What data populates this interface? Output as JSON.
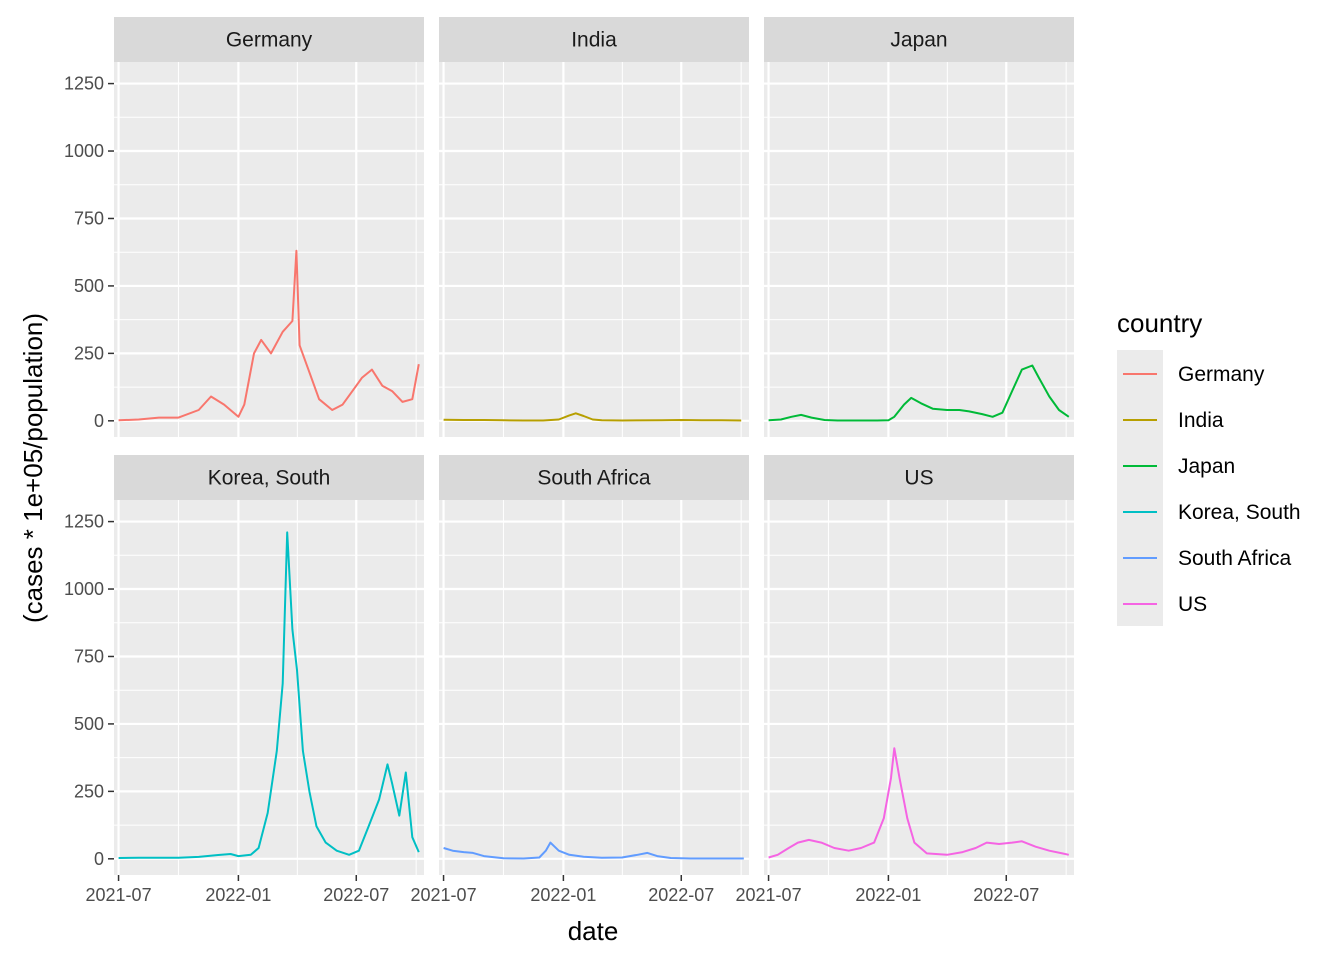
{
  "chart_data": {
    "type": "line",
    "facet": "country",
    "xlabel": "date",
    "ylabel": "(cases * 1e+05/population)",
    "x_ticks": [
      "2021-07",
      "2022-01",
      "2022-07"
    ],
    "y_ticks": [
      0,
      250,
      500,
      750,
      1000,
      1250
    ],
    "xlim": [
      "2021-06-24",
      "2022-10-13"
    ],
    "ylim": [
      -60,
      1330
    ],
    "legend": {
      "title": "country",
      "position": "right"
    },
    "grid": true,
    "series": [
      {
        "name": "Germany",
        "color": "#F8766D",
        "points": [
          [
            "2021-07-01",
            2
          ],
          [
            "2021-08-01",
            5
          ],
          [
            "2021-09-01",
            12
          ],
          [
            "2021-10-01",
            12
          ],
          [
            "2021-11-01",
            40
          ],
          [
            "2021-11-20",
            90
          ],
          [
            "2021-12-10",
            60
          ],
          [
            "2022-01-01",
            15
          ],
          [
            "2022-01-10",
            60
          ],
          [
            "2022-01-25",
            250
          ],
          [
            "2022-02-05",
            300
          ],
          [
            "2022-02-20",
            250
          ],
          [
            "2022-03-10",
            330
          ],
          [
            "2022-03-25",
            370
          ],
          [
            "2022-03-31",
            630
          ],
          [
            "2022-04-05",
            280
          ],
          [
            "2022-04-20",
            180
          ],
          [
            "2022-05-05",
            80
          ],
          [
            "2022-05-25",
            40
          ],
          [
            "2022-06-10",
            60
          ],
          [
            "2022-06-25",
            110
          ],
          [
            "2022-07-10",
            160
          ],
          [
            "2022-07-25",
            190
          ],
          [
            "2022-08-10",
            130
          ],
          [
            "2022-08-25",
            110
          ],
          [
            "2022-09-10",
            70
          ],
          [
            "2022-09-25",
            80
          ],
          [
            "2022-10-05",
            210
          ]
        ]
      },
      {
        "name": "India",
        "color": "#B79F00",
        "points": [
          [
            "2021-07-01",
            4
          ],
          [
            "2021-08-01",
            3
          ],
          [
            "2021-09-01",
            3
          ],
          [
            "2021-10-01",
            2
          ],
          [
            "2021-11-01",
            1
          ],
          [
            "2021-12-01",
            1
          ],
          [
            "2021-12-25",
            5
          ],
          [
            "2022-01-10",
            20
          ],
          [
            "2022-01-20",
            28
          ],
          [
            "2022-02-01",
            18
          ],
          [
            "2022-02-15",
            5
          ],
          [
            "2022-03-01",
            2
          ],
          [
            "2022-04-01",
            1
          ],
          [
            "2022-06-01",
            2
          ],
          [
            "2022-07-01",
            3
          ],
          [
            "2022-08-01",
            2
          ],
          [
            "2022-09-01",
            2
          ],
          [
            "2022-10-01",
            1
          ]
        ]
      },
      {
        "name": "Japan",
        "color": "#00BA38",
        "points": [
          [
            "2021-07-01",
            2
          ],
          [
            "2021-07-20",
            5
          ],
          [
            "2021-08-05",
            15
          ],
          [
            "2021-08-20",
            22
          ],
          [
            "2021-09-05",
            12
          ],
          [
            "2021-09-25",
            3
          ],
          [
            "2021-10-15",
            1
          ],
          [
            "2021-12-15",
            1
          ],
          [
            "2022-01-01",
            2
          ],
          [
            "2022-01-10",
            15
          ],
          [
            "2022-01-25",
            60
          ],
          [
            "2022-02-05",
            85
          ],
          [
            "2022-02-20",
            65
          ],
          [
            "2022-03-10",
            45
          ],
          [
            "2022-04-01",
            40
          ],
          [
            "2022-04-20",
            40
          ],
          [
            "2022-05-05",
            35
          ],
          [
            "2022-05-25",
            25
          ],
          [
            "2022-06-10",
            15
          ],
          [
            "2022-06-25",
            30
          ],
          [
            "2022-07-10",
            110
          ],
          [
            "2022-07-25",
            190
          ],
          [
            "2022-08-10",
            205
          ],
          [
            "2022-08-20",
            160
          ],
          [
            "2022-09-05",
            90
          ],
          [
            "2022-09-20",
            40
          ],
          [
            "2022-10-05",
            15
          ]
        ]
      },
      {
        "name": "Korea, South",
        "color": "#00BFC4",
        "points": [
          [
            "2021-07-01",
            3
          ],
          [
            "2021-08-01",
            4
          ],
          [
            "2021-09-01",
            4
          ],
          [
            "2021-10-01",
            4
          ],
          [
            "2021-11-01",
            7
          ],
          [
            "2021-12-01",
            14
          ],
          [
            "2021-12-20",
            18
          ],
          [
            "2022-01-01",
            10
          ],
          [
            "2022-01-20",
            15
          ],
          [
            "2022-02-01",
            40
          ],
          [
            "2022-02-15",
            170
          ],
          [
            "2022-03-01",
            400
          ],
          [
            "2022-03-10",
            650
          ],
          [
            "2022-03-17",
            1210
          ],
          [
            "2022-03-25",
            850
          ],
          [
            "2022-04-01",
            700
          ],
          [
            "2022-04-10",
            400
          ],
          [
            "2022-04-20",
            250
          ],
          [
            "2022-05-01",
            120
          ],
          [
            "2022-05-15",
            60
          ],
          [
            "2022-06-01",
            30
          ],
          [
            "2022-06-20",
            15
          ],
          [
            "2022-07-05",
            30
          ],
          [
            "2022-07-20",
            120
          ],
          [
            "2022-08-05",
            220
          ],
          [
            "2022-08-18",
            350
          ],
          [
            "2022-08-25",
            280
          ],
          [
            "2022-09-05",
            160
          ],
          [
            "2022-09-15",
            320
          ],
          [
            "2022-09-25",
            80
          ],
          [
            "2022-10-05",
            25
          ]
        ]
      },
      {
        "name": "South Africa",
        "color": "#619CFF",
        "points": [
          [
            "2021-07-01",
            40
          ],
          [
            "2021-07-15",
            30
          ],
          [
            "2021-08-01",
            25
          ],
          [
            "2021-08-15",
            22
          ],
          [
            "2021-09-01",
            10
          ],
          [
            "2021-10-01",
            2
          ],
          [
            "2021-11-01",
            1
          ],
          [
            "2021-11-25",
            5
          ],
          [
            "2021-12-05",
            30
          ],
          [
            "2021-12-12",
            60
          ],
          [
            "2021-12-25",
            30
          ],
          [
            "2022-01-10",
            15
          ],
          [
            "2022-02-01",
            8
          ],
          [
            "2022-03-01",
            4
          ],
          [
            "2022-04-01",
            5
          ],
          [
            "2022-04-25",
            15
          ],
          [
            "2022-05-10",
            22
          ],
          [
            "2022-05-25",
            10
          ],
          [
            "2022-06-15",
            3
          ],
          [
            "2022-07-15",
            1
          ],
          [
            "2022-10-05",
            1
          ]
        ]
      },
      {
        "name": "US",
        "color": "#F564E3",
        "points": [
          [
            "2021-07-01",
            5
          ],
          [
            "2021-07-15",
            15
          ],
          [
            "2021-08-01",
            40
          ],
          [
            "2021-08-15",
            60
          ],
          [
            "2021-09-01",
            70
          ],
          [
            "2021-09-20",
            60
          ],
          [
            "2021-10-10",
            40
          ],
          [
            "2021-11-01",
            30
          ],
          [
            "2021-11-20",
            40
          ],
          [
            "2021-12-10",
            60
          ],
          [
            "2021-12-25",
            150
          ],
          [
            "2022-01-05",
            300
          ],
          [
            "2022-01-10",
            410
          ],
          [
            "2022-01-18",
            300
          ],
          [
            "2022-01-30",
            150
          ],
          [
            "2022-02-10",
            60
          ],
          [
            "2022-03-01",
            20
          ],
          [
            "2022-04-01",
            15
          ],
          [
            "2022-04-25",
            25
          ],
          [
            "2022-05-15",
            40
          ],
          [
            "2022-06-01",
            60
          ],
          [
            "2022-06-20",
            55
          ],
          [
            "2022-07-10",
            60
          ],
          [
            "2022-07-25",
            65
          ],
          [
            "2022-08-15",
            45
          ],
          [
            "2022-09-05",
            30
          ],
          [
            "2022-09-25",
            20
          ],
          [
            "2022-10-05",
            15
          ]
        ]
      }
    ]
  }
}
